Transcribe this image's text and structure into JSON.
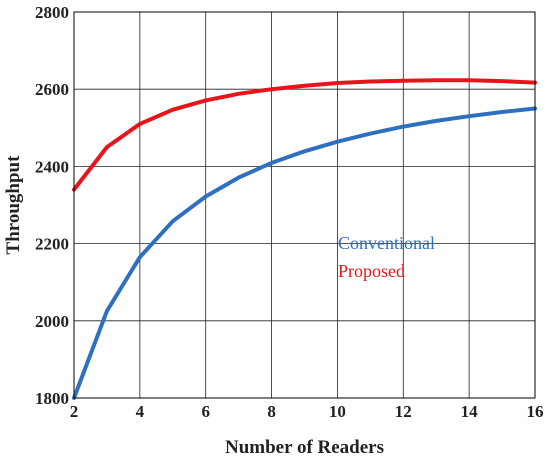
{
  "chart_data": {
    "type": "line",
    "title": "",
    "xlabel": "Number of Readers",
    "ylabel": "Throughput",
    "xlim": [
      2,
      16
    ],
    "ylim": [
      1800,
      2800
    ],
    "xticks": [
      2,
      4,
      6,
      8,
      10,
      12,
      14,
      16
    ],
    "yticks": [
      1800,
      2000,
      2200,
      2400,
      2600,
      2800
    ],
    "grid": true,
    "legend_position": "center-right",
    "series": [
      {
        "name": "Conventional",
        "color": "#2f6fbf",
        "x": [
          2,
          3,
          4,
          5,
          6,
          7,
          8,
          9,
          10,
          11,
          12,
          13,
          14,
          15,
          16
        ],
        "y": [
          1800,
          2025,
          2165,
          2258,
          2322,
          2371,
          2409,
          2439,
          2464,
          2485,
          2503,
          2518,
          2530,
          2541,
          2550
        ]
      },
      {
        "name": "Proposed",
        "color": "#e8141b",
        "x": [
          2,
          3,
          4,
          5,
          6,
          7,
          8,
          9,
          10,
          11,
          12,
          13,
          14,
          15,
          16
        ],
        "y": [
          2340,
          2450,
          2510,
          2547,
          2571,
          2588,
          2600,
          2609,
          2616,
          2620,
          2622,
          2623,
          2623,
          2621,
          2617
        ]
      }
    ]
  }
}
